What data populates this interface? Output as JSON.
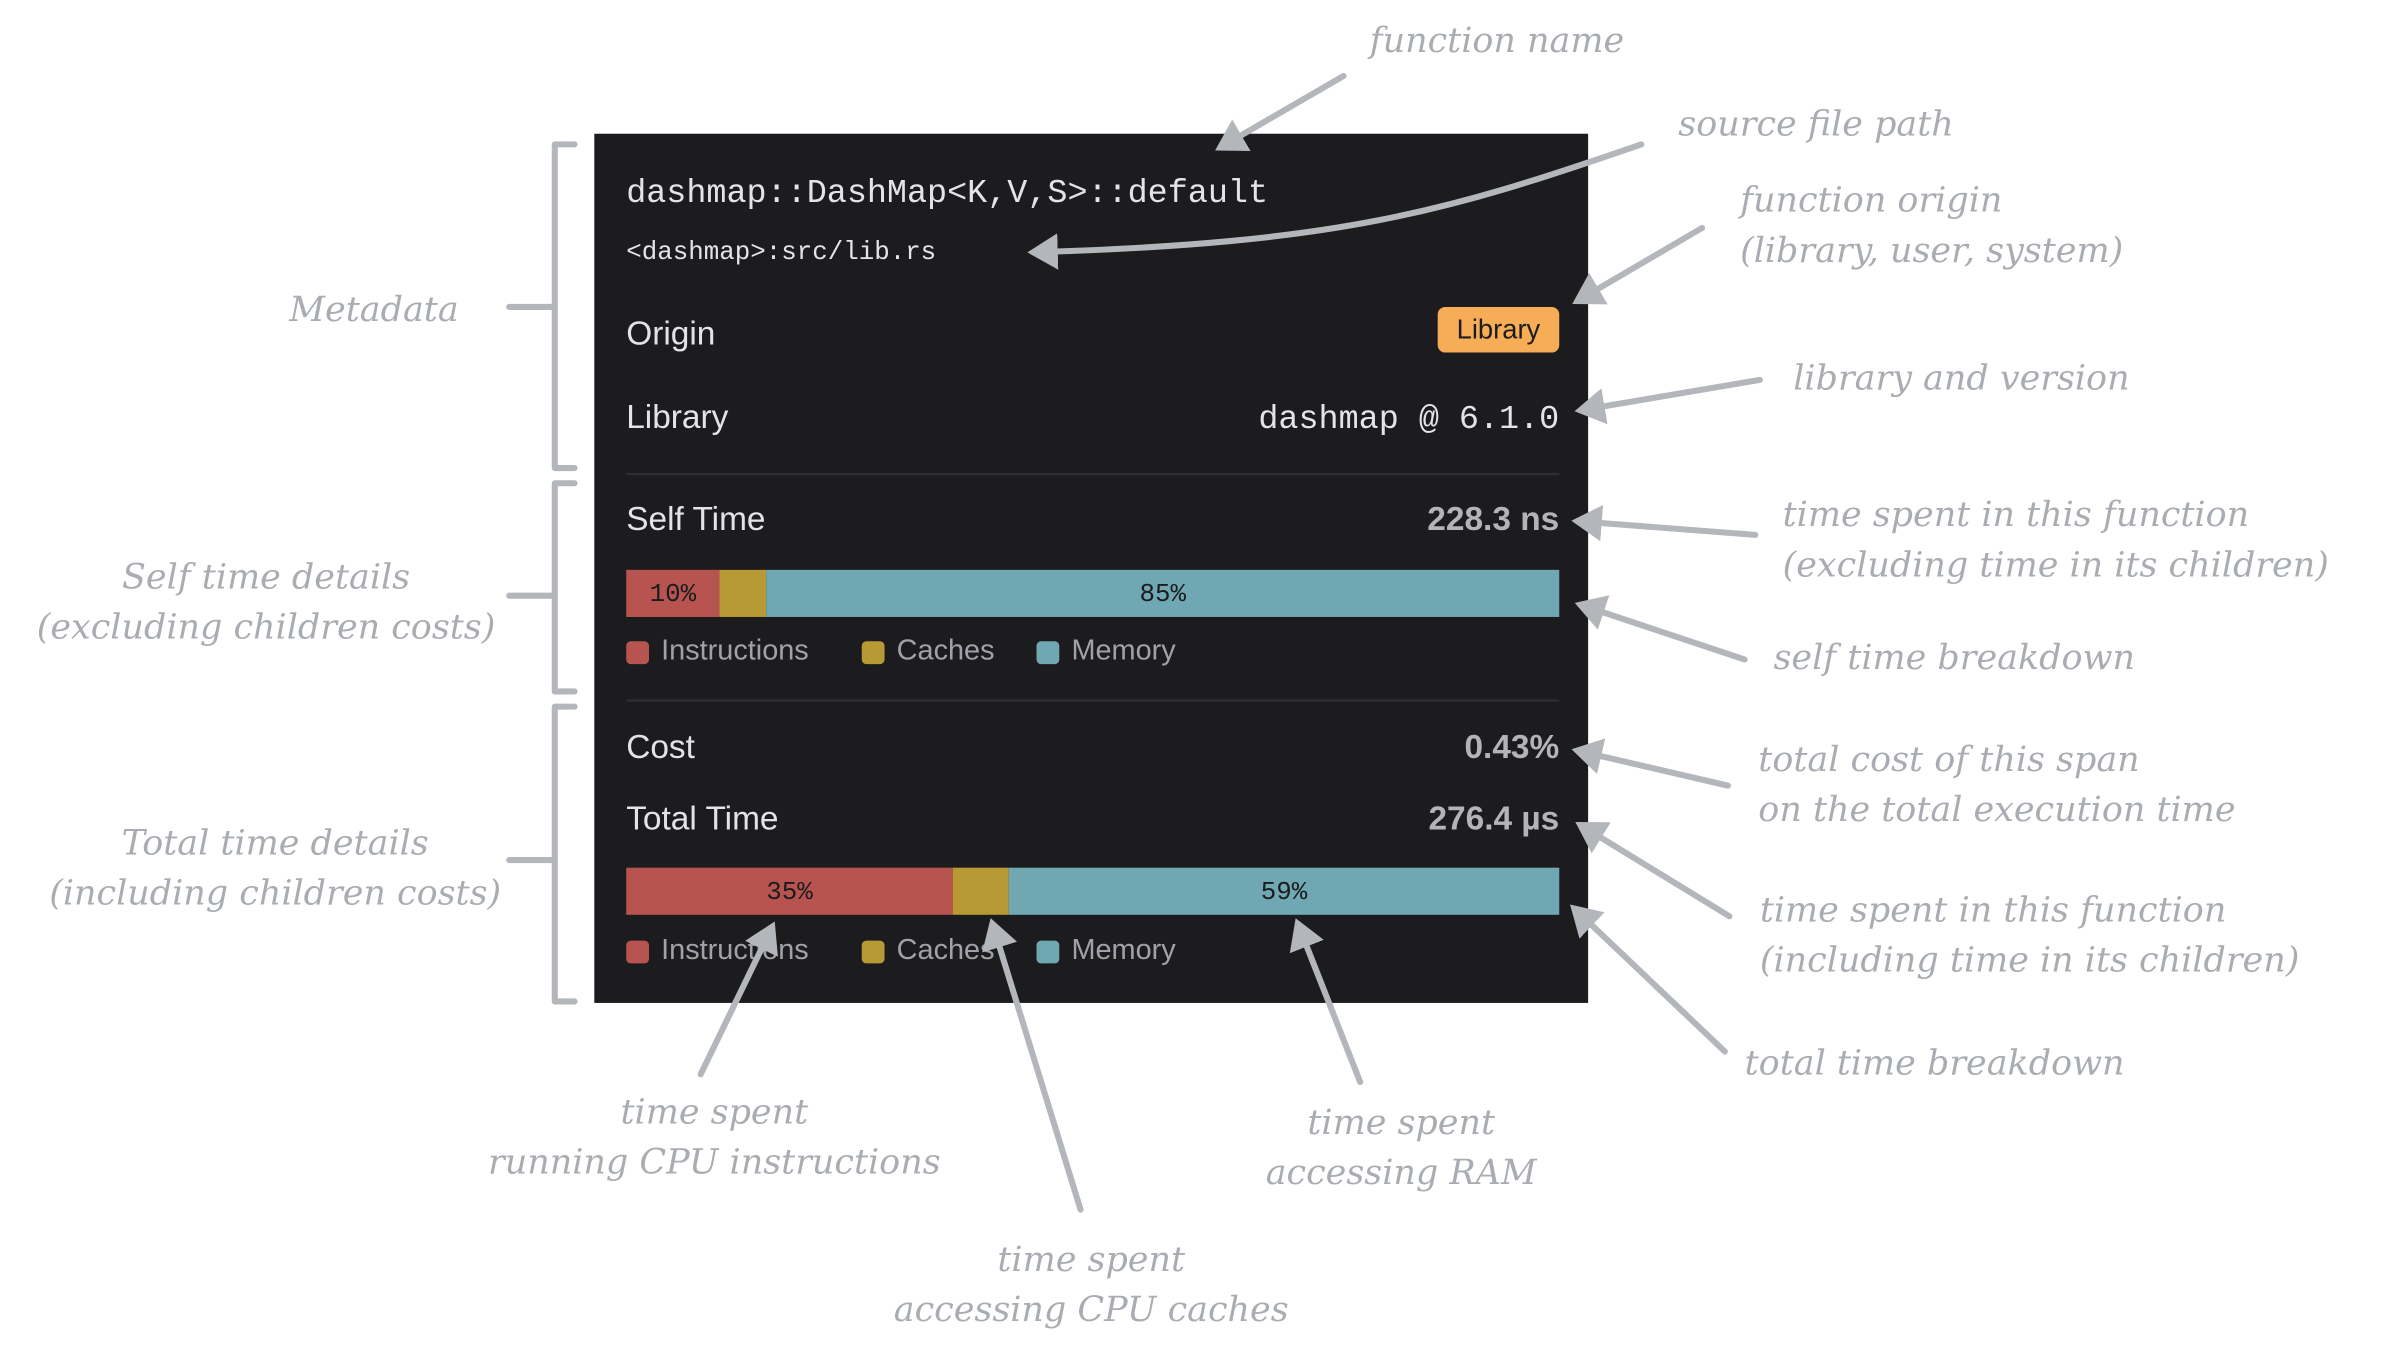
{
  "panel": {
    "function_name": "dashmap::DashMap<K,V,S>::default",
    "source_path": "<dashmap>:src/lib.rs",
    "origin": {
      "label": "Origin",
      "badge": "Library"
    },
    "library": {
      "label": "Library",
      "value": "dashmap @ 6.1.0"
    },
    "self_time": {
      "label": "Self Time",
      "value": "228.3 ns",
      "breakdown": [
        {
          "name": "Instructions",
          "color": "#b85450",
          "value": 10,
          "label": "10%"
        },
        {
          "name": "Caches",
          "color": "#b89a35",
          "value": 5
        },
        {
          "name": "Memory",
          "color": "#6fa8b3",
          "value": 85,
          "label": "85%"
        }
      ]
    },
    "cost": {
      "label": "Cost",
      "value": "0.43%"
    },
    "total_time": {
      "label": "Total Time",
      "value": "276.4 µs",
      "breakdown": [
        {
          "name": "Instructions",
          "color": "#b85450",
          "value": 35,
          "label": "35%"
        },
        {
          "name": "Caches",
          "color": "#b89a35",
          "value": 6
        },
        {
          "name": "Memory",
          "color": "#6fa8b3",
          "value": 59,
          "label": "59%"
        }
      ]
    }
  },
  "annotations": [
    [
      "function name"
    ],
    [
      "source file path"
    ],
    [
      "function origin",
      "(library, user, system)"
    ],
    [
      "library and version"
    ],
    [
      "time spent in this function",
      "(excluding time in its children)"
    ],
    [
      "self time breakdown"
    ],
    [
      "total cost of this span",
      "on the total execution time"
    ],
    [
      "time spent in this function",
      "(including time in its children)"
    ],
    [
      "total time breakdown"
    ],
    [
      "Metadata"
    ],
    [
      "Self time details",
      "(excluding children costs)"
    ],
    [
      "Total time details",
      "(including children costs)"
    ],
    [
      "time spent",
      "running CPU instructions"
    ],
    [
      "time spent",
      "accessing CPU caches"
    ],
    [
      "time spent",
      "accessing RAM"
    ]
  ]
}
